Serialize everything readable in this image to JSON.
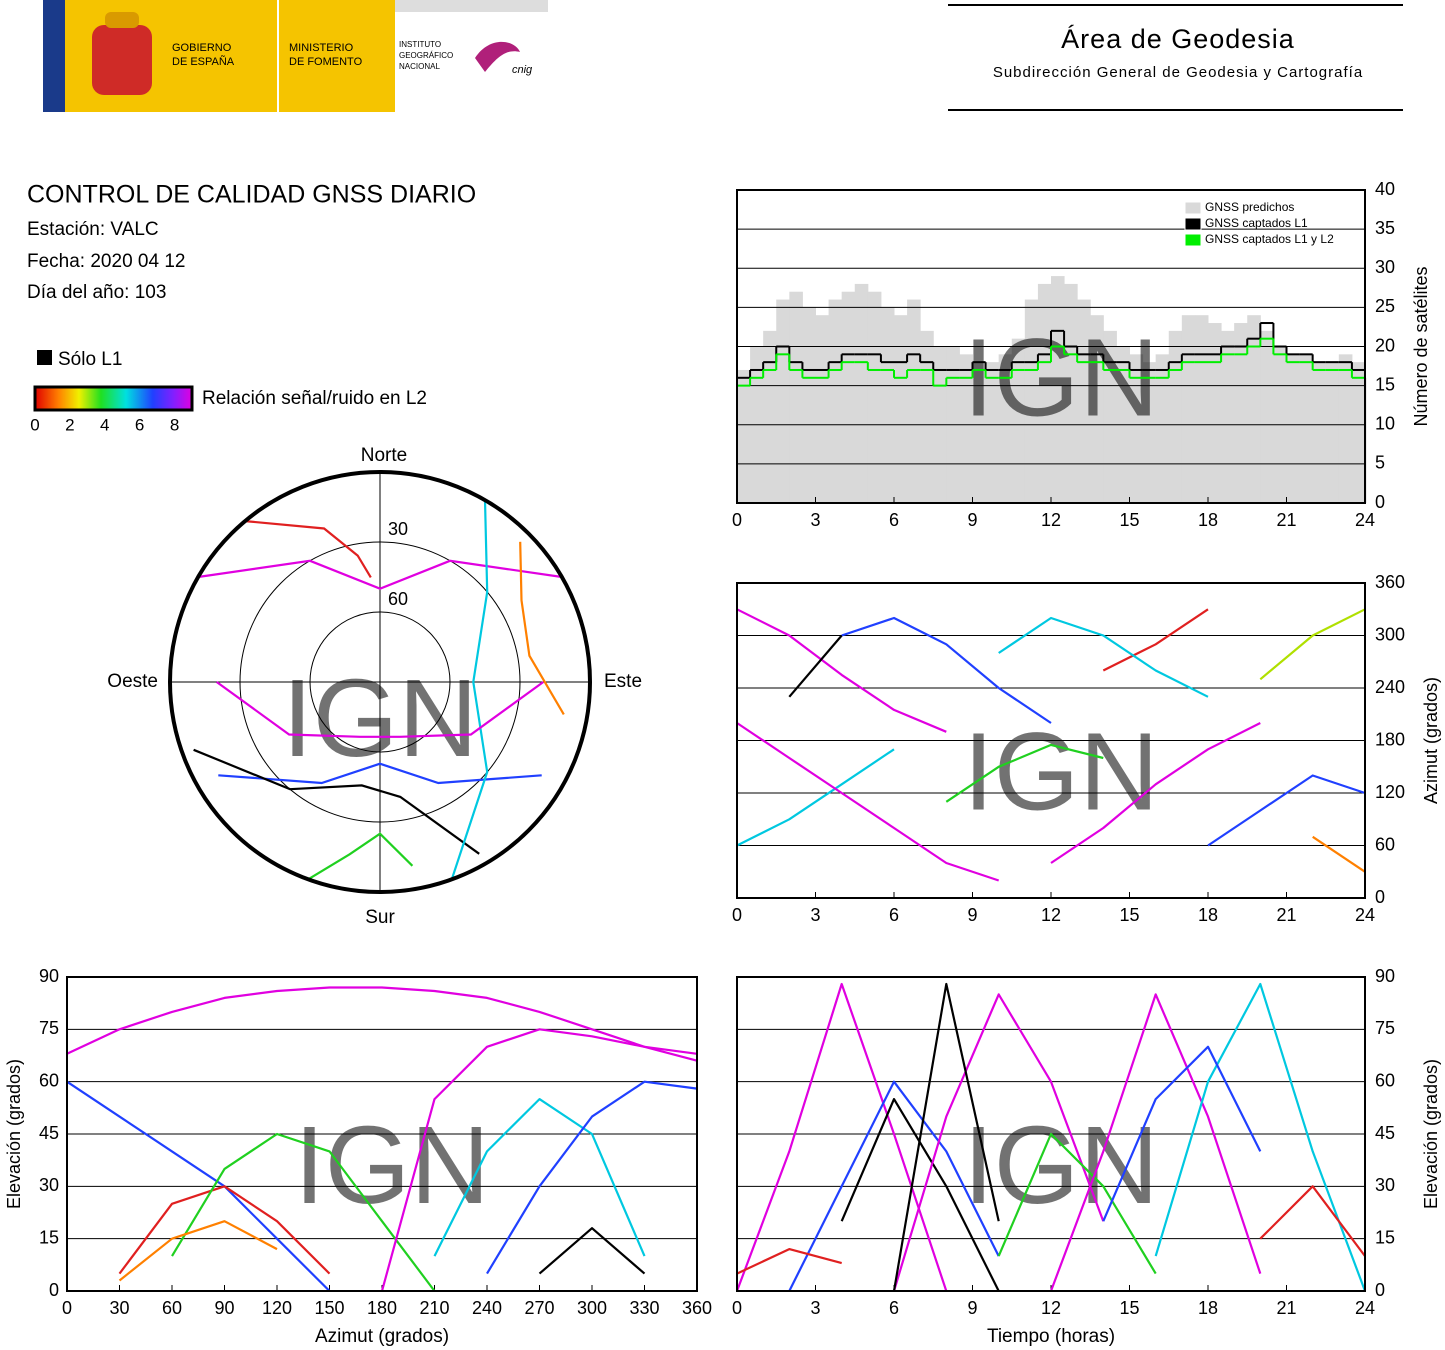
{
  "header": {
    "gov": [
      "GOBIERNO",
      "DE ESPAÑA"
    ],
    "ministry": [
      "MINISTERIO",
      "DE FOMENTO"
    ],
    "institute": [
      "INSTITUTO",
      "GEOGRÁFICO",
      "NACIONAL"
    ],
    "cnig": "cnig",
    "area": "Área de Geodesia",
    "subdirection": "Subdirección General de Geodesia y Cartografía"
  },
  "info": {
    "title": "CONTROL DE CALIDAD GNSS DIARIO",
    "station": "Estación: VALC",
    "date": "Fecha: 2020 04 12",
    "doy": "Día del año: 103",
    "l1_only": "Sólo L1",
    "snr_label": "Relación señal/ruido en L2",
    "snr_lim": [
      0,
      9
    ],
    "snr_ticks": [
      0,
      2,
      4,
      6,
      8
    ]
  },
  "watermark": "IGN",
  "chart_data": [
    {
      "type": "line",
      "ylabel": "Número de satélites",
      "yaxis_side": "right",
      "grid": true,
      "legend": "upper right",
      "xlim": [
        0,
        24
      ],
      "xticks": [
        0,
        3,
        6,
        9,
        12,
        15,
        18,
        21,
        24
      ],
      "ylim": [
        0,
        40
      ],
      "yticks": [
        0,
        5,
        10,
        15,
        20,
        25,
        30,
        35,
        40
      ],
      "x": [
        0,
        0.5,
        1,
        1.5,
        2,
        2.5,
        3,
        3.5,
        4,
        4.5,
        5,
        5.5,
        6,
        6.5,
        7,
        7.5,
        8,
        8.5,
        9,
        9.5,
        10,
        10.5,
        11,
        11.5,
        12,
        12.5,
        13,
        13.5,
        14,
        14.5,
        15,
        15.5,
        16,
        16.5,
        17,
        17.5,
        18,
        18.5,
        19,
        19.5,
        20,
        20.5,
        21,
        21.5,
        22,
        22.5,
        23,
        23.5,
        24
      ],
      "series": [
        {
          "name": "GNSS predichos",
          "color": "#d9d9d9",
          "area": true,
          "values": [
            17,
            20,
            22,
            26,
            27,
            25,
            24,
            26,
            27,
            28,
            27,
            25,
            24,
            26,
            22,
            20,
            20,
            19,
            18,
            18,
            19,
            21,
            26,
            28,
            29,
            28,
            26,
            24,
            22,
            20,
            19,
            18,
            19,
            22,
            24,
            24,
            23,
            22,
            23,
            24,
            22,
            20,
            19,
            19,
            18,
            18,
            19,
            18,
            16
          ]
        },
        {
          "name": "GNSS captados L1",
          "color": "#000000",
          "step": true,
          "values": [
            16,
            17,
            18,
            20,
            18,
            17,
            17,
            18,
            19,
            19,
            19,
            18,
            18,
            19,
            18,
            17,
            17,
            17,
            18,
            17,
            17,
            18,
            18,
            19,
            22,
            20,
            19,
            19,
            18,
            18,
            17,
            17,
            17,
            18,
            19,
            19,
            19,
            20,
            20,
            21,
            23,
            20,
            19,
            19,
            18,
            18,
            18,
            17,
            16
          ]
        },
        {
          "name": "GNSS captados L1 y L2",
          "color": "#00ee00",
          "step": true,
          "values": [
            15,
            16,
            17,
            19,
            17,
            16,
            16,
            17,
            18,
            18,
            17,
            17,
            16,
            17,
            17,
            15,
            16,
            16,
            17,
            16,
            16,
            17,
            17,
            18,
            20,
            19,
            18,
            18,
            17,
            17,
            16,
            16,
            16,
            17,
            18,
            18,
            18,
            19,
            19,
            20,
            21,
            19,
            18,
            18,
            17,
            17,
            17,
            16,
            14
          ]
        }
      ]
    },
    {
      "type": "line",
      "ylabel": "Azimut (grados)",
      "yaxis_side": "right",
      "grid": true,
      "xlim": [
        0,
        24
      ],
      "xticks": [
        0,
        3,
        6,
        9,
        12,
        15,
        18,
        21,
        24
      ],
      "ylim": [
        0,
        360
      ],
      "yticks": [
        0,
        60,
        120,
        180,
        240,
        300,
        360
      ],
      "x": [
        0,
        2,
        4,
        6,
        8,
        10,
        12,
        14,
        16,
        18,
        20,
        22,
        24
      ],
      "series": [
        {
          "color": "#e000e0",
          "values": [
            330,
            300,
            255,
            215,
            190,
            null,
            null,
            null,
            null,
            null,
            null,
            null,
            null
          ]
        },
        {
          "color": "#2040ff",
          "values": [
            null,
            null,
            300,
            320,
            290,
            240,
            200,
            null,
            null,
            null,
            null,
            null,
            null
          ]
        },
        {
          "color": "#00c8e0",
          "values": [
            60,
            90,
            130,
            170,
            null,
            null,
            null,
            null,
            null,
            null,
            null,
            null,
            null
          ]
        },
        {
          "color": "#20d020",
          "values": [
            null,
            null,
            null,
            null,
            110,
            150,
            175,
            160,
            null,
            null,
            null,
            null,
            null
          ]
        },
        {
          "color": "#e02020",
          "values": [
            null,
            null,
            null,
            null,
            null,
            null,
            null,
            260,
            290,
            330,
            null,
            null,
            null
          ]
        },
        {
          "color": "#e000e0",
          "values": [
            null,
            null,
            null,
            null,
            null,
            null,
            40,
            80,
            130,
            170,
            200,
            null,
            null
          ]
        },
        {
          "color": "#2040ff",
          "values": [
            null,
            null,
            null,
            null,
            null,
            null,
            null,
            null,
            null,
            60,
            100,
            140,
            120
          ]
        },
        {
          "color": "#b0e000",
          "values": [
            null,
            null,
            null,
            null,
            null,
            null,
            null,
            null,
            null,
            null,
            250,
            300,
            330
          ]
        },
        {
          "color": "#000000",
          "values": [
            null,
            230,
            300,
            null,
            null,
            null,
            null,
            null,
            null,
            null,
            null,
            null,
            null
          ]
        },
        {
          "color": "#e000e0",
          "values": [
            200,
            160,
            120,
            80,
            40,
            20,
            null,
            null,
            null,
            null,
            null,
            null,
            null
          ]
        },
        {
          "color": "#00c8e0",
          "values": [
            null,
            null,
            null,
            null,
            null,
            280,
            320,
            300,
            260,
            230,
            null,
            null,
            null
          ]
        },
        {
          "color": "#ff8000",
          "values": [
            null,
            null,
            null,
            null,
            null,
            null,
            null,
            null,
            null,
            null,
            null,
            70,
            30
          ]
        }
      ]
    },
    {
      "type": "line",
      "ylabel": "Elevación (grados)",
      "xlabel": "Tiempo (horas)",
      "yaxis_side": "right",
      "grid": true,
      "xlim": [
        0,
        24
      ],
      "xticks": [
        0,
        3,
        6,
        9,
        12,
        15,
        18,
        21,
        24
      ],
      "ylim": [
        0,
        90
      ],
      "yticks": [
        0,
        15,
        30,
        45,
        60,
        75,
        90
      ],
      "x": [
        0,
        2,
        4,
        6,
        8,
        10,
        12,
        14,
        16,
        18,
        20,
        22,
        24
      ],
      "series": [
        {
          "color": "#e000e0",
          "values": [
            0,
            40,
            88,
            45,
            0,
            null,
            null,
            null,
            null,
            null,
            null,
            null,
            null
          ]
        },
        {
          "color": "#2040ff",
          "values": [
            null,
            0,
            30,
            60,
            40,
            10,
            null,
            null,
            null,
            null,
            null,
            null,
            null
          ]
        },
        {
          "color": "#000000",
          "values": [
            null,
            null,
            20,
            55,
            30,
            0,
            null,
            null,
            null,
            null,
            null,
            null,
            null
          ]
        },
        {
          "color": "#e000e0",
          "values": [
            null,
            null,
            null,
            0,
            50,
            85,
            60,
            20,
            null,
            null,
            null,
            null,
            null
          ]
        },
        {
          "color": "#20d020",
          "values": [
            null,
            null,
            null,
            null,
            null,
            10,
            45,
            30,
            5,
            null,
            null,
            null,
            null
          ]
        },
        {
          "color": "#e000e0",
          "values": [
            null,
            null,
            null,
            null,
            null,
            null,
            0,
            40,
            85,
            50,
            5,
            null,
            null
          ]
        },
        {
          "color": "#00c8e0",
          "values": [
            null,
            null,
            null,
            null,
            null,
            null,
            null,
            null,
            10,
            60,
            88,
            40,
            0
          ]
        },
        {
          "color": "#e02020",
          "values": [
            5,
            12,
            8,
            null,
            null,
            null,
            null,
            null,
            null,
            null,
            null,
            null,
            null
          ]
        },
        {
          "color": "#e02020",
          "values": [
            null,
            null,
            null,
            null,
            null,
            null,
            null,
            null,
            null,
            null,
            15,
            30,
            10
          ]
        },
        {
          "color": "#2040ff",
          "values": [
            null,
            null,
            null,
            null,
            null,
            null,
            null,
            20,
            55,
            70,
            40,
            null,
            null
          ]
        },
        {
          "color": "#000000",
          "values": [
            null,
            null,
            null,
            0,
            88,
            20,
            null,
            null,
            null,
            null,
            null,
            null,
            null
          ]
        }
      ]
    },
    {
      "type": "line",
      "ylabel": "Elevación (grados)",
      "xlabel": "Azimut (grados)",
      "yaxis_side": "left",
      "grid": true,
      "xlim": [
        0,
        360
      ],
      "xticks": [
        0,
        30,
        60,
        90,
        120,
        150,
        180,
        210,
        240,
        270,
        300,
        330,
        360
      ],
      "ylim": [
        0,
        90
      ],
      "yticks": [
        0,
        15,
        30,
        45,
        60,
        75,
        90
      ],
      "x": [
        0,
        30,
        60,
        90,
        120,
        150,
        180,
        210,
        240,
        270,
        300,
        330,
        360
      ],
      "series": [
        {
          "color": "#e000e0",
          "values": [
            68,
            75,
            80,
            84,
            86,
            87,
            87,
            86,
            84,
            80,
            75,
            70,
            66
          ]
        },
        {
          "color": "#2040ff",
          "values": [
            60,
            50,
            40,
            30,
            15,
            0,
            null,
            null,
            null,
            null,
            null,
            null,
            null
          ]
        },
        {
          "color": "#e02020",
          "values": [
            null,
            5,
            25,
            30,
            20,
            5,
            null,
            null,
            null,
            null,
            null,
            null,
            null
          ]
        },
        {
          "color": "#20d020",
          "values": [
            null,
            null,
            10,
            35,
            45,
            40,
            20,
            0,
            null,
            null,
            null,
            null,
            null
          ]
        },
        {
          "color": "#000000",
          "values": [
            null,
            null,
            null,
            null,
            null,
            null,
            null,
            null,
            null,
            5,
            18,
            5,
            null
          ]
        },
        {
          "color": "#00c8e0",
          "values": [
            null,
            null,
            null,
            null,
            null,
            null,
            null,
            10,
            40,
            55,
            45,
            10,
            null
          ]
        },
        {
          "color": "#e000e0",
          "values": [
            null,
            null,
            null,
            null,
            null,
            null,
            0,
            55,
            70,
            75,
            73,
            70,
            68
          ]
        },
        {
          "color": "#ff8000",
          "values": [
            null,
            3,
            15,
            20,
            12,
            null,
            null,
            null,
            null,
            null,
            null,
            null,
            null
          ]
        },
        {
          "color": "#2040ff",
          "values": [
            null,
            null,
            null,
            null,
            null,
            null,
            null,
            null,
            5,
            30,
            50,
            60,
            58
          ]
        }
      ]
    },
    {
      "type": "polar",
      "directions": {
        "north": "Norte",
        "south": "Sur",
        "east": "Este",
        "west": "Oeste"
      },
      "rlim": [
        0,
        90
      ],
      "rticks": [
        30,
        60
      ],
      "series": [
        {
          "color": "#e000e0",
          "x": [
            300,
            330,
            0,
            30,
            60
          ],
          "values": [
            0,
            30,
            50,
            30,
            0
          ]
        },
        {
          "color": "#2040ff",
          "x": [
            240,
            210,
            180,
            150,
            120
          ],
          "values": [
            10,
            40,
            55,
            40,
            10
          ]
        },
        {
          "color": "#e02020",
          "x": [
            320,
            340,
            350,
            355
          ],
          "values": [
            0,
            20,
            35,
            45
          ]
        },
        {
          "color": "#20d020",
          "x": [
            200,
            190,
            180,
            170
          ],
          "values": [
            0,
            15,
            25,
            10
          ]
        },
        {
          "color": "#000000",
          "x": [
            250,
            220,
            190,
            170,
            150
          ],
          "values": [
            5,
            30,
            45,
            40,
            5
          ]
        },
        {
          "color": "#00c8e0",
          "x": [
            30,
            50,
            90,
            130,
            160
          ],
          "values": [
            0,
            30,
            50,
            30,
            0
          ]
        },
        {
          "color": "#e000e0",
          "x": [
            270,
            240,
            200,
            160,
            120,
            90
          ],
          "values": [
            20,
            45,
            65,
            65,
            45,
            20
          ]
        },
        {
          "color": "#ff8000",
          "x": [
            45,
            60,
            80,
            100
          ],
          "values": [
            5,
            20,
            25,
            10
          ]
        }
      ]
    }
  ]
}
